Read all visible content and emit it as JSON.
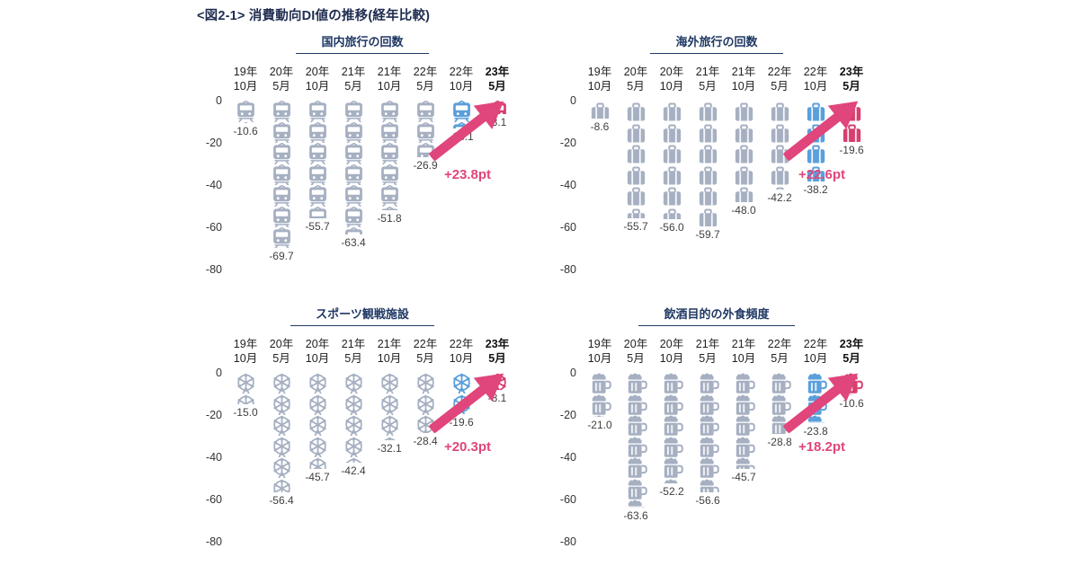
{
  "title": "<図2-1> 消費動向DI値の推移(経年比較)",
  "colors": {
    "navy": "#1f3864",
    "gray": "#a6b0c2",
    "blue": "#5b9fdb",
    "pink": "#d6406e",
    "arrow": "#e0457b",
    "axis_text": "#333333",
    "value_text": "#404040"
  },
  "chart_data": [
    {
      "type": "bar",
      "style": "pictograph",
      "title": "国内旅行の回数",
      "icon": "train-icon",
      "categories": [
        "19年10月",
        "20年5月",
        "20年10月",
        "21年5月",
        "21年10月",
        "22年5月",
        "22年10月",
        "23年5月"
      ],
      "values": [
        -10.6,
        -69.7,
        -55.7,
        -63.4,
        -51.8,
        -26.9,
        -13.1,
        -3.1
      ],
      "column_colors": [
        "gray",
        "gray",
        "gray",
        "gray",
        "gray",
        "gray",
        "blue",
        "pink"
      ],
      "annotation": "+23.8pt",
      "yticks": [
        "0",
        "-20",
        "-40",
        "-60",
        "-80"
      ],
      "ylim": [
        -80,
        0
      ],
      "grid": false,
      "legend": "none"
    },
    {
      "type": "bar",
      "style": "pictograph",
      "title": "海外旅行の回数",
      "icon": "suitcase-icon",
      "categories": [
        "19年10月",
        "20年5月",
        "20年10月",
        "21年5月",
        "21年10月",
        "22年5月",
        "22年10月",
        "23年5月"
      ],
      "values": [
        -8.6,
        -55.7,
        -56.0,
        -59.7,
        -48.0,
        -42.2,
        -38.2,
        -19.6
      ],
      "column_colors": [
        "gray",
        "gray",
        "gray",
        "gray",
        "gray",
        "gray",
        "blue",
        "pink"
      ],
      "annotation": "+22.6pt",
      "yticks": [
        "0",
        "-20",
        "-40",
        "-60",
        "-80"
      ],
      "ylim": [
        -80,
        0
      ],
      "grid": false,
      "legend": "none"
    },
    {
      "type": "bar",
      "style": "pictograph",
      "title": "スポーツ観戦施設",
      "icon": "ferris-wheel-icon",
      "categories": [
        "19年10月",
        "20年5月",
        "20年10月",
        "21年5月",
        "21年10月",
        "22年5月",
        "22年10月",
        "23年5月"
      ],
      "values": [
        -15.0,
        -56.4,
        -45.7,
        -42.4,
        -32.1,
        -28.4,
        -19.6,
        -8.1
      ],
      "column_colors": [
        "gray",
        "gray",
        "gray",
        "gray",
        "gray",
        "gray",
        "blue",
        "pink"
      ],
      "annotation": "+20.3pt",
      "yticks": [
        "0",
        "-20",
        "-40",
        "-60",
        "-80"
      ],
      "ylim": [
        -80,
        0
      ],
      "grid": false,
      "legend": "none"
    },
    {
      "type": "bar",
      "style": "pictograph",
      "title": "飲酒目的の外食頻度",
      "icon": "beer-mug-icon",
      "categories": [
        "19年10月",
        "20年5月",
        "20年10月",
        "21年5月",
        "21年10月",
        "22年5月",
        "22年10月",
        "23年5月"
      ],
      "values": [
        -21.0,
        -63.6,
        -52.2,
        -56.6,
        -45.7,
        -28.8,
        -23.8,
        -10.6
      ],
      "column_colors": [
        "gray",
        "gray",
        "gray",
        "gray",
        "gray",
        "gray",
        "blue",
        "pink"
      ],
      "annotation": "+18.2pt",
      "yticks": [
        "0",
        "-20",
        "-40",
        "-60",
        "-80"
      ],
      "ylim": [
        -80,
        0
      ],
      "grid": false,
      "legend": "none"
    }
  ]
}
